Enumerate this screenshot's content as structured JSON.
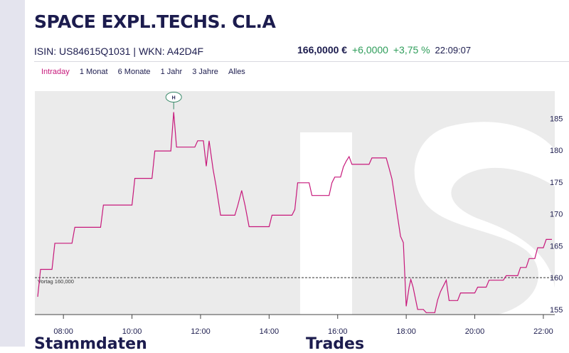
{
  "header": {
    "title": "SPACE EXPL.TECHS. CL.A",
    "isin": "ISIN: US84615Q1031",
    "wkn": "WKN: A42D4F",
    "separator": "|"
  },
  "quote": {
    "price": "166,0000 €",
    "change": "+6,0000",
    "change_pct": "+3,75 %",
    "time": "22:09:07"
  },
  "tabs": [
    {
      "label": "Intraday",
      "active": true
    },
    {
      "label": "1 Monat",
      "active": false
    },
    {
      "label": "6 Monate",
      "active": false
    },
    {
      "label": "1 Jahr",
      "active": false
    },
    {
      "label": "3 Jahre",
      "active": false
    },
    {
      "label": "Alles",
      "active": false
    }
  ],
  "sections": {
    "left": "Stammdaten",
    "right": "Trades"
  },
  "colors": {
    "line": "#c7187b",
    "positive": "#2e9d5a",
    "plot_bg": "#ebebeb",
    "marker": "#3a8a6a"
  },
  "chart_data": {
    "type": "line",
    "title": "",
    "xlabel": "",
    "ylabel": "",
    "x_ticks": [
      "08:00",
      "10:00",
      "12:00",
      "14:00",
      "16:00",
      "18:00",
      "20:00",
      "22:00"
    ],
    "y_ticks": [
      "155",
      "160",
      "165",
      "170",
      "175",
      "180",
      "185"
    ],
    "xlim": [
      "07:10",
      "22:20"
    ],
    "ylim": [
      154.2,
      189.3
    ],
    "reference_line": {
      "label": "Vortag 160,000",
      "value": 160
    },
    "high_marker": {
      "label": "H",
      "x": "11:13",
      "y": 186
    },
    "series": [
      {
        "values": [
          [
            "07:15",
            157.0
          ],
          [
            "07:20",
            161.3
          ],
          [
            "07:40",
            161.3
          ],
          [
            "07:45",
            165.4
          ],
          [
            "08:15",
            165.4
          ],
          [
            "08:20",
            167.9
          ],
          [
            "09:05",
            167.9
          ],
          [
            "09:10",
            171.4
          ],
          [
            "10:00",
            171.4
          ],
          [
            "10:05",
            175.6
          ],
          [
            "10:35",
            175.6
          ],
          [
            "10:40",
            179.9
          ],
          [
            "11:08",
            179.9
          ],
          [
            "11:13",
            186.0
          ],
          [
            "11:18",
            180.5
          ],
          [
            "11:50",
            180.5
          ],
          [
            "11:55",
            181.5
          ],
          [
            "12:05",
            181.5
          ],
          [
            "12:10",
            177.5
          ],
          [
            "12:15",
            181.5
          ],
          [
            "12:22",
            177.0
          ],
          [
            "12:27",
            174.5
          ],
          [
            "12:35",
            169.8
          ],
          [
            "12:50",
            169.8
          ],
          [
            "13:00",
            169.8
          ],
          [
            "13:05",
            171.3
          ],
          [
            "13:12",
            173.7
          ],
          [
            "13:18",
            171.3
          ],
          [
            "13:25",
            168.0
          ],
          [
            "13:50",
            168.0
          ],
          [
            "14:00",
            168.0
          ],
          [
            "14:05",
            169.8
          ],
          [
            "14:40",
            169.8
          ],
          [
            "14:45",
            170.7
          ],
          [
            "14:50",
            174.9
          ],
          [
            "15:10",
            174.9
          ],
          [
            "15:15",
            172.9
          ],
          [
            "15:45",
            172.9
          ],
          [
            "15:50",
            174.9
          ],
          [
            "15:55",
            175.8
          ],
          [
            "16:05",
            175.8
          ],
          [
            "16:10",
            177.4
          ],
          [
            "16:15",
            178.3
          ],
          [
            "16:20",
            179.0
          ],
          [
            "16:25",
            177.8
          ],
          [
            "16:55",
            177.8
          ],
          [
            "17:00",
            178.8
          ],
          [
            "17:25",
            178.8
          ],
          [
            "17:30",
            177.2
          ],
          [
            "17:35",
            175.5
          ],
          [
            "17:40",
            172.5
          ],
          [
            "17:45",
            169.5
          ],
          [
            "17:50",
            166.5
          ],
          [
            "17:55",
            165.5
          ],
          [
            "18:00",
            155.5
          ],
          [
            "18:05",
            158.5
          ],
          [
            "18:08",
            159.7
          ],
          [
            "18:12",
            158.5
          ],
          [
            "18:15",
            157.2
          ],
          [
            "18:20",
            155.0
          ],
          [
            "18:30",
            155.0
          ],
          [
            "18:35",
            154.5
          ],
          [
            "18:50",
            154.5
          ],
          [
            "18:55",
            156.5
          ],
          [
            "19:00",
            157.8
          ],
          [
            "19:05",
            158.7
          ],
          [
            "19:10",
            159.6
          ],
          [
            "19:15",
            156.4
          ],
          [
            "19:30",
            156.4
          ],
          [
            "19:35",
            157.6
          ],
          [
            "20:00",
            157.6
          ],
          [
            "20:05",
            158.5
          ],
          [
            "20:20",
            158.5
          ],
          [
            "20:25",
            159.6
          ],
          [
            "20:50",
            159.6
          ],
          [
            "20:55",
            160.3
          ],
          [
            "21:15",
            160.3
          ],
          [
            "21:20",
            161.6
          ],
          [
            "21:30",
            161.6
          ],
          [
            "21:35",
            163.0
          ],
          [
            "21:45",
            163.0
          ],
          [
            "21:50",
            164.7
          ],
          [
            "22:00",
            164.7
          ],
          [
            "22:05",
            166.0
          ],
          [
            "22:15",
            166.0
          ]
        ]
      }
    ]
  }
}
